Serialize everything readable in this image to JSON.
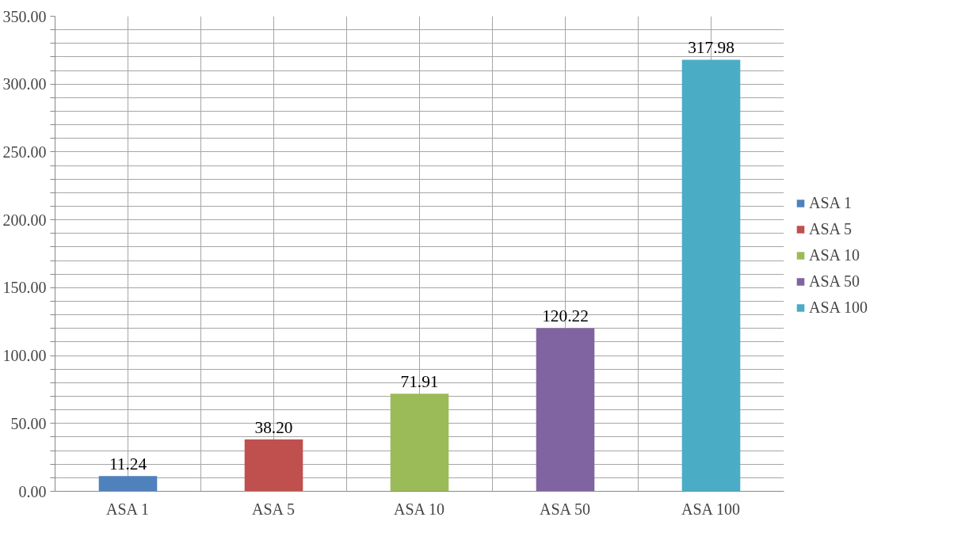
{
  "chart_data": {
    "type": "bar",
    "categories": [
      "ASA 1",
      "ASA 5",
      "ASA 10",
      "ASA 50",
      "ASA 100"
    ],
    "series": [
      {
        "name": "ASA 1",
        "color": "#4f81bd",
        "values": [
          11.24,
          null,
          null,
          null,
          null
        ],
        "value_labels": [
          "11.24",
          null,
          null,
          null,
          null
        ]
      },
      {
        "name": "ASA 5",
        "color": "#c0504d",
        "values": [
          null,
          38.2,
          null,
          null,
          null
        ],
        "value_labels": [
          null,
          "38.20",
          null,
          null,
          null
        ]
      },
      {
        "name": "ASA 10",
        "color": "#9bbb59",
        "values": [
          null,
          null,
          71.91,
          null,
          null
        ],
        "value_labels": [
          null,
          null,
          "71.91",
          null,
          null
        ]
      },
      {
        "name": "ASA 50",
        "color": "#8064a2",
        "values": [
          null,
          null,
          null,
          120.22,
          null
        ],
        "value_labels": [
          null,
          null,
          null,
          "120.22",
          null
        ]
      },
      {
        "name": "ASA 100",
        "color": "#4bacc6",
        "values": [
          null,
          null,
          null,
          null,
          317.98
        ],
        "value_labels": [
          null,
          null,
          null,
          null,
          "317.98"
        ]
      }
    ],
    "ylim": [
      0,
      350
    ],
    "yticks": [
      {
        "value": 0,
        "label": "0.00"
      },
      {
        "value": 10,
        "label": null
      },
      {
        "value": 20,
        "label": null
      },
      {
        "value": 30,
        "label": null
      },
      {
        "value": 40,
        "label": null
      },
      {
        "value": 50,
        "label": "50.00"
      },
      {
        "value": 60,
        "label": null
      },
      {
        "value": 70,
        "label": null
      },
      {
        "value": 80,
        "label": null
      },
      {
        "value": 90,
        "label": null
      },
      {
        "value": 100,
        "label": "100.00"
      },
      {
        "value": 110,
        "label": null
      },
      {
        "value": 120,
        "label": null
      },
      {
        "value": 130,
        "label": null
      },
      {
        "value": 140,
        "label": null
      },
      {
        "value": 150,
        "label": "150.00"
      },
      {
        "value": 160,
        "label": null
      },
      {
        "value": 170,
        "label": null
      },
      {
        "value": 180,
        "label": null
      },
      {
        "value": 190,
        "label": null
      },
      {
        "value": 200,
        "label": "200.00"
      },
      {
        "value": 210,
        "label": null
      },
      {
        "value": 220,
        "label": null
      },
      {
        "value": 230,
        "label": null
      },
      {
        "value": 240,
        "label": null
      },
      {
        "value": 250,
        "label": "250.00"
      },
      {
        "value": 260,
        "label": null
      },
      {
        "value": 270,
        "label": null
      },
      {
        "value": 280,
        "label": null
      },
      {
        "value": 290,
        "label": null
      },
      {
        "value": 300,
        "label": "300.00"
      },
      {
        "value": 310,
        "label": null
      },
      {
        "value": 320,
        "label": null
      },
      {
        "value": 330,
        "label": null
      },
      {
        "value": 340,
        "label": null
      },
      {
        "value": 350,
        "label": "350.00"
      }
    ],
    "grid": true,
    "legend": "right"
  }
}
